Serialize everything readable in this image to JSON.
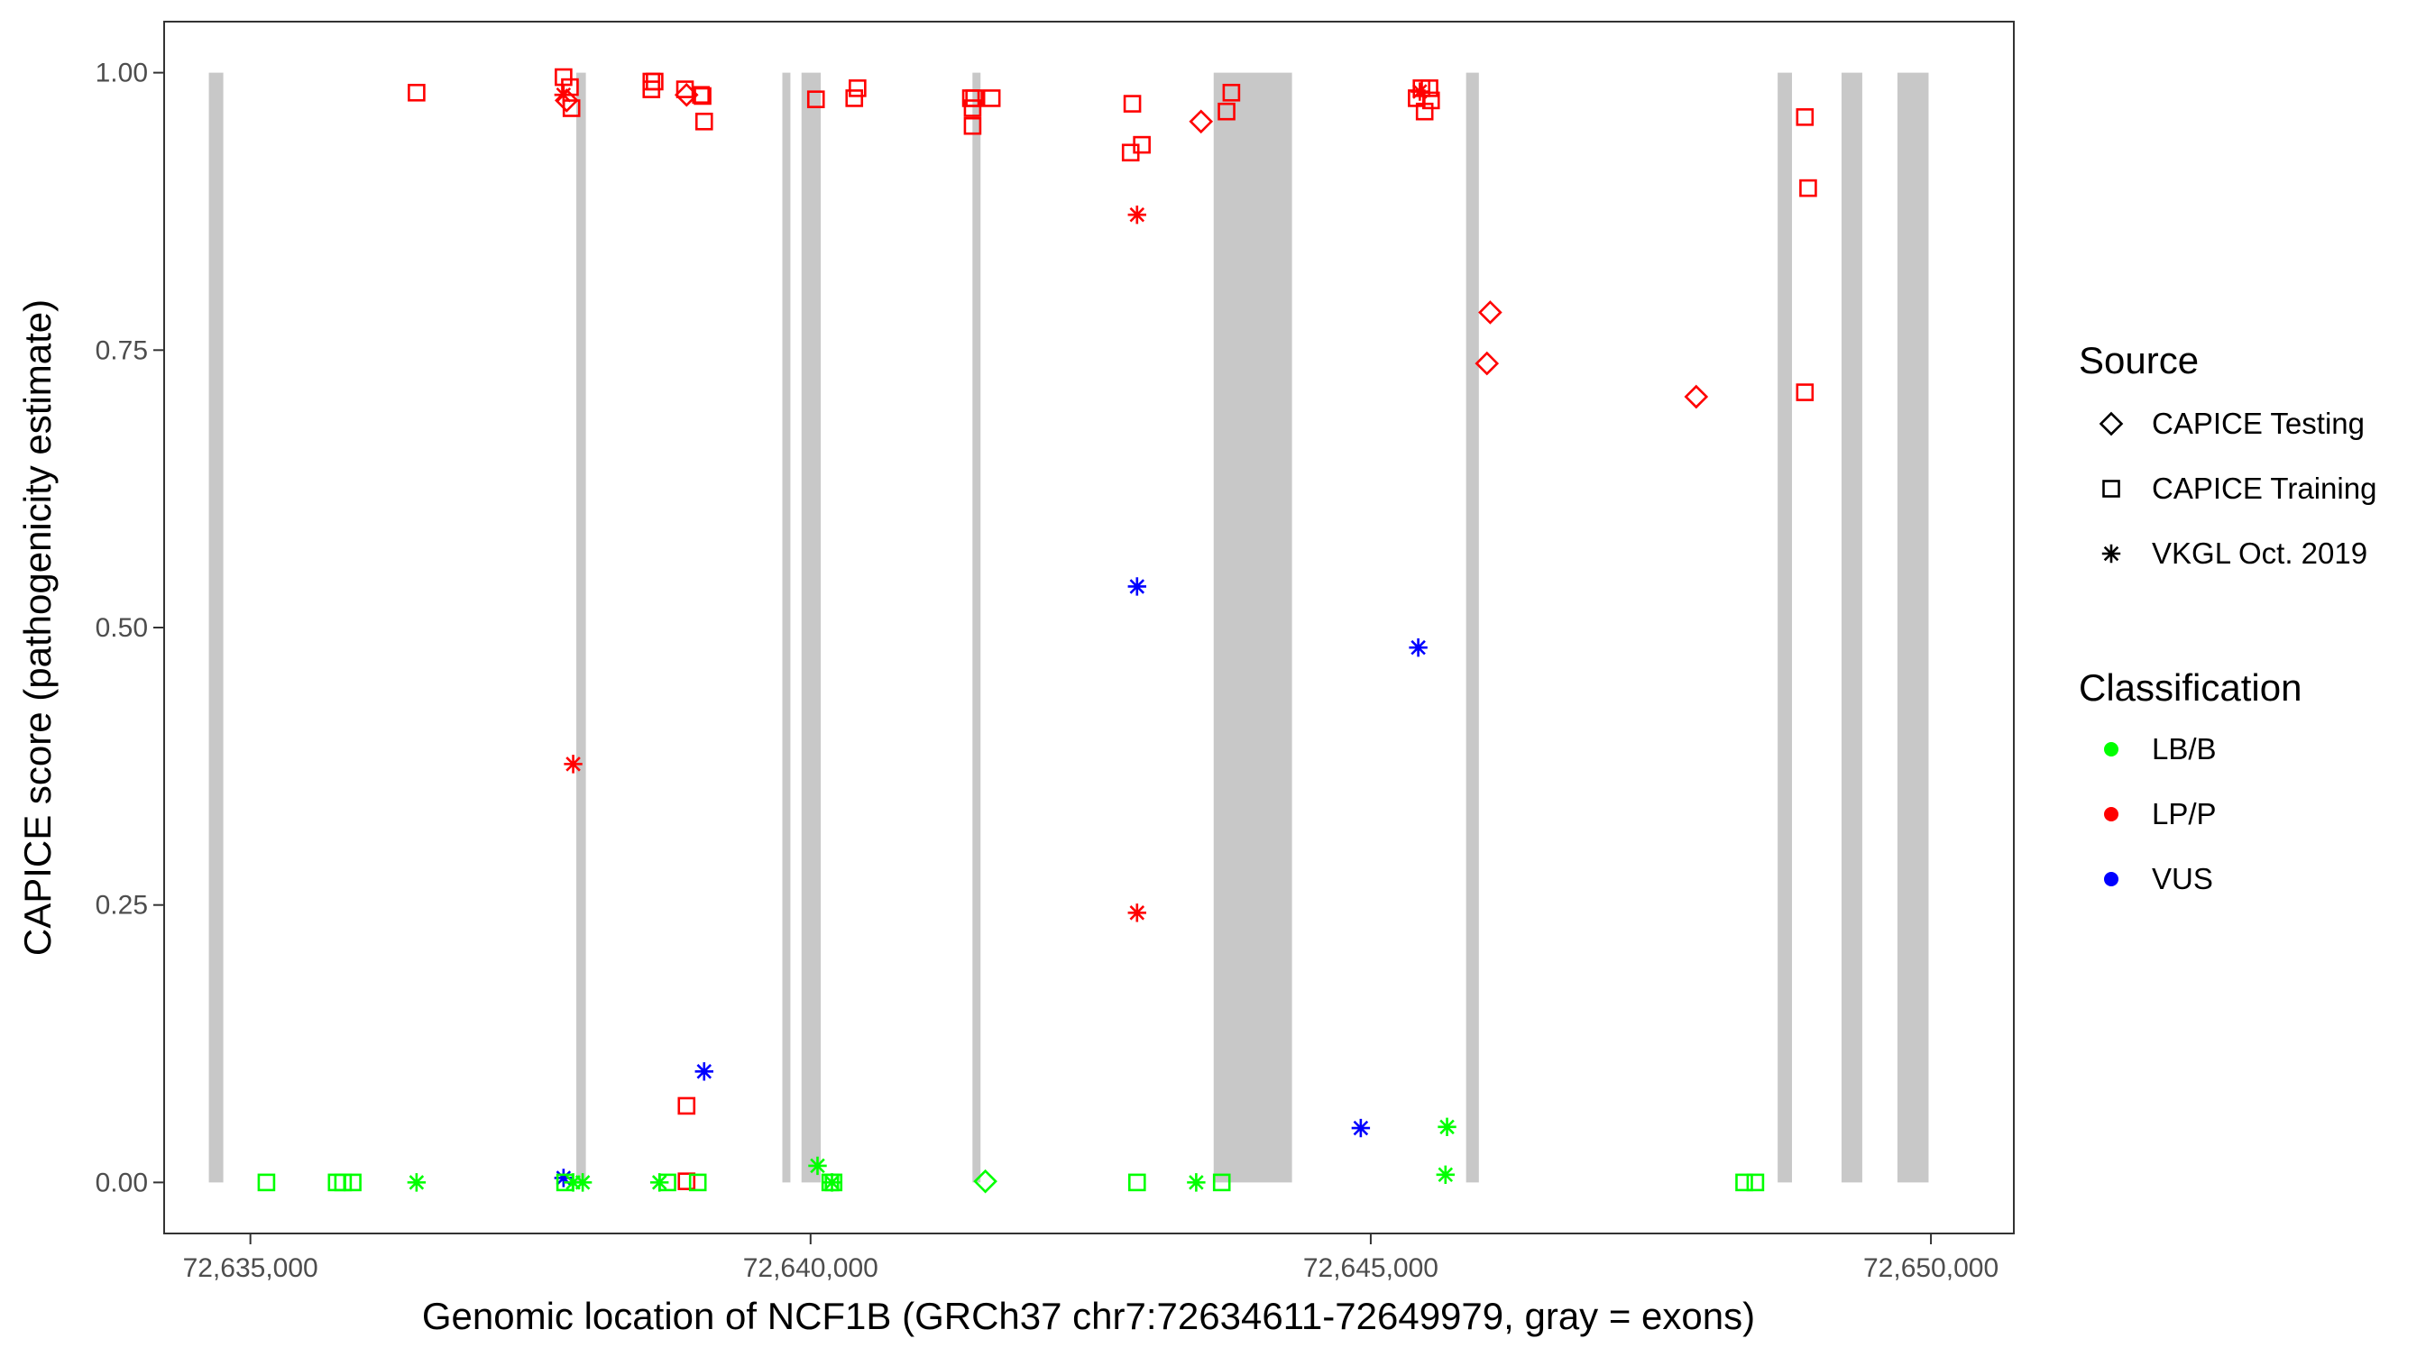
{
  "chart_data": {
    "type": "scatter",
    "xlabel": "Genomic location of NCF1B (GRCh37 chr7:72634611-72649979, gray = exons)",
    "ylabel": "CAPICE score (pathogenicity estimate)",
    "xlim": [
      72634230,
      72650740
    ],
    "ylim": [
      -0.046,
      1.046
    ],
    "x_ticks": [
      72635000,
      72640000,
      72645000,
      72650000
    ],
    "x_tick_labels": [
      "72,635,000",
      "72,640,000",
      "72,645,000",
      "72,650,000"
    ],
    "y_ticks": [
      0,
      0.25,
      0.5,
      0.75,
      1.0
    ],
    "y_tick_labels": [
      "0.00",
      "0.25",
      "0.50",
      "0.75",
      "1.00"
    ],
    "grid": false,
    "legend_placement": "right",
    "exons": [
      [
        72634629,
        72634758
      ],
      [
        72637909,
        72637994
      ],
      [
        72639748,
        72639820
      ],
      [
        72639919,
        72640091
      ],
      [
        72641445,
        72641517
      ],
      [
        72643598,
        72644297
      ],
      [
        72645851,
        72645965
      ],
      [
        72648632,
        72648760
      ],
      [
        72649202,
        72649387
      ],
      [
        72649701,
        72649979
      ]
    ],
    "legend": {
      "source_title": "Source",
      "sources": [
        {
          "label": "CAPICE Testing",
          "shape": "diamond"
        },
        {
          "label": "CAPICE Training",
          "shape": "square"
        },
        {
          "label": "VKGL Oct. 2019",
          "shape": "asterisk"
        }
      ],
      "class_title": "Classification",
      "classes": [
        {
          "label": "LB/B",
          "color": "#00ff00"
        },
        {
          "label": "LP/P",
          "color": "#ff0000"
        },
        {
          "label": "VUS",
          "color": "#0000ff"
        }
      ]
    },
    "point_fields": [
      "position",
      "score",
      "source_index",
      "class_index"
    ],
    "points": [
      [
        72636483,
        0.982,
        1,
        1
      ],
      [
        72637795,
        0.996,
        1,
        1
      ],
      [
        72637852,
        0.987,
        1,
        1
      ],
      [
        72637795,
        0.98,
        2,
        1
      ],
      [
        72637823,
        0.975,
        0,
        1
      ],
      [
        72637866,
        0.968,
        1,
        1
      ],
      [
        72638579,
        0.992,
        1,
        1
      ],
      [
        72638579,
        0.985,
        1,
        1
      ],
      [
        72638608,
        0.992,
        1,
        1
      ],
      [
        72638893,
        0.98,
        0,
        1
      ],
      [
        72638879,
        0.985,
        1,
        1
      ],
      [
        72639021,
        0.98,
        1,
        1
      ],
      [
        72639036,
        0.979,
        1,
        1
      ],
      [
        72639050,
        0.956,
        1,
        1
      ],
      [
        72640048,
        0.976,
        1,
        1
      ],
      [
        72640390,
        0.977,
        1,
        1
      ],
      [
        72640419,
        0.986,
        1,
        1
      ],
      [
        72641431,
        0.977,
        1,
        1
      ],
      [
        72641446,
        0.968,
        1,
        1
      ],
      [
        72641460,
        0.977,
        1,
        1
      ],
      [
        72641617,
        0.977,
        1,
        1
      ],
      [
        72641446,
        0.952,
        1,
        1
      ],
      [
        72642872,
        0.972,
        1,
        1
      ],
      [
        72642857,
        0.928,
        1,
        1
      ],
      [
        72642957,
        0.935,
        1,
        1
      ],
      [
        72643485,
        0.956,
        0,
        1
      ],
      [
        72643713,
        0.965,
        1,
        1
      ],
      [
        72643756,
        0.982,
        1,
        1
      ],
      [
        72642914,
        0.872,
        2,
        1
      ],
      [
        72645410,
        0.977,
        1,
        1
      ],
      [
        72645453,
        0.986,
        1,
        1
      ],
      [
        72645524,
        0.986,
        1,
        1
      ],
      [
        72645481,
        0.965,
        1,
        1
      ],
      [
        72645538,
        0.975,
        1,
        1
      ],
      [
        72645438,
        0.983,
        2,
        1
      ],
      [
        72646066,
        0.784,
        0,
        1
      ],
      [
        72646037,
        0.738,
        0,
        1
      ],
      [
        72647905,
        0.708,
        0,
        1
      ],
      [
        72648875,
        0.96,
        1,
        1
      ],
      [
        72648904,
        0.896,
        1,
        1
      ],
      [
        72648875,
        0.712,
        1,
        1
      ],
      [
        72637881,
        0.377,
        2,
        1
      ],
      [
        72642914,
        0.243,
        2,
        1
      ],
      [
        72638893,
        0.069,
        1,
        1
      ],
      [
        72638893,
        0.001,
        1,
        1
      ],
      [
        72642914,
        0.537,
        2,
        2
      ],
      [
        72645424,
        0.482,
        2,
        2
      ],
      [
        72639050,
        0.1,
        2,
        2
      ],
      [
        72644911,
        0.049,
        2,
        2
      ],
      [
        72637795,
        0.004,
        2,
        2
      ],
      [
        72635143,
        0.0,
        1,
        0
      ],
      [
        72635770,
        0.0,
        1,
        0
      ],
      [
        72635827,
        0.0,
        1,
        0
      ],
      [
        72635913,
        0.0,
        1,
        0
      ],
      [
        72636483,
        0.0,
        2,
        0
      ],
      [
        72637809,
        0.0,
        1,
        0
      ],
      [
        72637881,
        0.0,
        2,
        0
      ],
      [
        72637966,
        0.0,
        2,
        0
      ],
      [
        72638651,
        0.0,
        2,
        0
      ],
      [
        72638722,
        0.0,
        1,
        0
      ],
      [
        72638993,
        0.0,
        1,
        0
      ],
      [
        72640062,
        0.015,
        2,
        0
      ],
      [
        72640176,
        0.0,
        1,
        0
      ],
      [
        72640205,
        0.0,
        1,
        0
      ],
      [
        72640191,
        0.0,
        2,
        0
      ],
      [
        72641560,
        0.001,
        0,
        0
      ],
      [
        72642914,
        0.0,
        1,
        0
      ],
      [
        72643442,
        0.0,
        2,
        0
      ],
      [
        72643670,
        0.0,
        1,
        0
      ],
      [
        72645681,
        0.05,
        2,
        0
      ],
      [
        72645667,
        0.007,
        2,
        0
      ],
      [
        72648333,
        0.0,
        1,
        0
      ],
      [
        72648433,
        0.0,
        1,
        0
      ]
    ]
  }
}
